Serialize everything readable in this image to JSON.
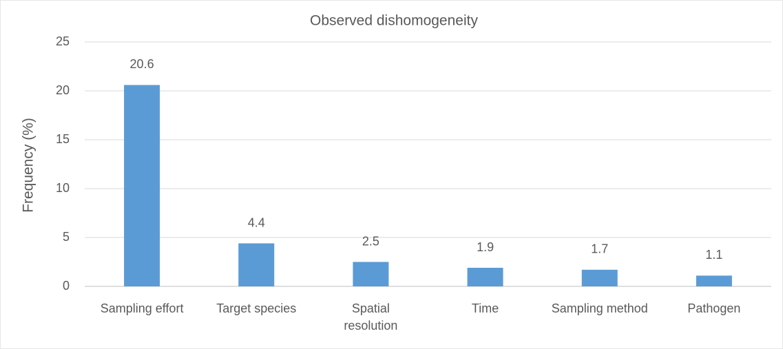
{
  "chart_data": {
    "type": "bar",
    "title": "Observed dishomogeneity",
    "y_label": "Frequency (%)",
    "categories": [
      "Sampling effort",
      "Target species",
      "Spatial resolution",
      "Time",
      "Sampling method",
      "Pathogen"
    ],
    "values": [
      20.6,
      4.4,
      2.5,
      1.9,
      1.7,
      1.1
    ],
    "color": "#5b9bd5",
    "ylim": [
      0,
      25
    ],
    "yticks": [
      0,
      5,
      10,
      15,
      20,
      25
    ],
    "grid": true
  }
}
